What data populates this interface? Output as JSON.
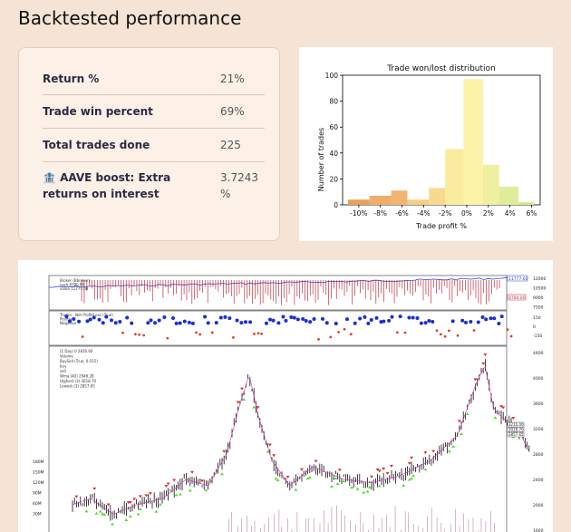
{
  "header": {
    "title": "Backtested performance"
  },
  "stats": [
    {
      "label": "Return %",
      "value": "21%"
    },
    {
      "label": "Trade win percent",
      "value": "69%"
    },
    {
      "label": "Total trades done",
      "value": "225"
    },
    {
      "label": "🏦 AAVE boost: Extra returns on interest",
      "value": "3.7243 %"
    }
  ],
  "chart_data": {
    "type": "bar",
    "title": "Trade won/lost distribution",
    "xlabel": "Trade profit %",
    "ylabel": "Number of trades",
    "ylim": [
      0,
      100
    ],
    "yticks": [
      "0",
      "20",
      "40",
      "60",
      "80",
      "100"
    ],
    "xticks": [
      "-10%",
      "-8%",
      "-6%",
      "-4%",
      "-2%",
      "0%",
      "2%",
      "4%",
      "6%"
    ],
    "bins": [
      {
        "from": -11,
        "to": -9,
        "value": 4,
        "color": "#e8a05a"
      },
      {
        "from": -9,
        "to": -7,
        "value": 7,
        "color": "#eead68"
      },
      {
        "from": -7,
        "to": -5.5,
        "value": 11,
        "color": "#f0b570"
      },
      {
        "from": -5.5,
        "to": -3.5,
        "value": 4,
        "color": "#f5cf85"
      },
      {
        "from": -3.5,
        "to": -2,
        "value": 13,
        "color": "#f7da8f"
      },
      {
        "from": -2,
        "to": -0.3,
        "value": 43,
        "color": "#faeb9e"
      },
      {
        "from": -0.3,
        "to": 1.5,
        "value": 97,
        "color": "#fbf3a8"
      },
      {
        "from": 1.5,
        "to": 3,
        "value": 31,
        "color": "#eef0a0"
      },
      {
        "from": 3,
        "to": 4.8,
        "value": 14,
        "color": "#e2eb9a"
      },
      {
        "from": 4.8,
        "to": 6.2,
        "value": 2,
        "color": "#d6e690"
      }
    ]
  },
  "backtest": {
    "broker_legend": [
      "Broker (Bbroker)",
      "cash 8780.80",
      "value 11777.60"
    ],
    "broker_right": [
      "11777.60",
      "8780.80"
    ],
    "broker_ticks": [
      "12000",
      "10500",
      "9000",
      "7500"
    ],
    "trades_legend": [
      "Trades - Net Profit/Loss (True)",
      "Positive",
      "Negative"
    ],
    "trades_ticks": [
      "150",
      "0",
      "-150"
    ],
    "price_legend": [
      "(1 Day) 0 2816.60",
      "Volume",
      "BuySell (True, 0.015)",
      "buy",
      "sell",
      "Wma (40) 2946.28",
      "Highest (3) 3018.70",
      "Lowest (3) 2857.65"
    ],
    "price_ticks": [
      "4400",
      "4000",
      "3600",
      "3200",
      "2800",
      "2400",
      "2000",
      "1600"
    ],
    "price_right": [
      "3215.00",
      "3018.70",
      "2857.65"
    ],
    "volume_ticks": [
      "180M",
      "150M",
      "120M",
      "90M",
      "60M",
      "30M"
    ]
  }
}
